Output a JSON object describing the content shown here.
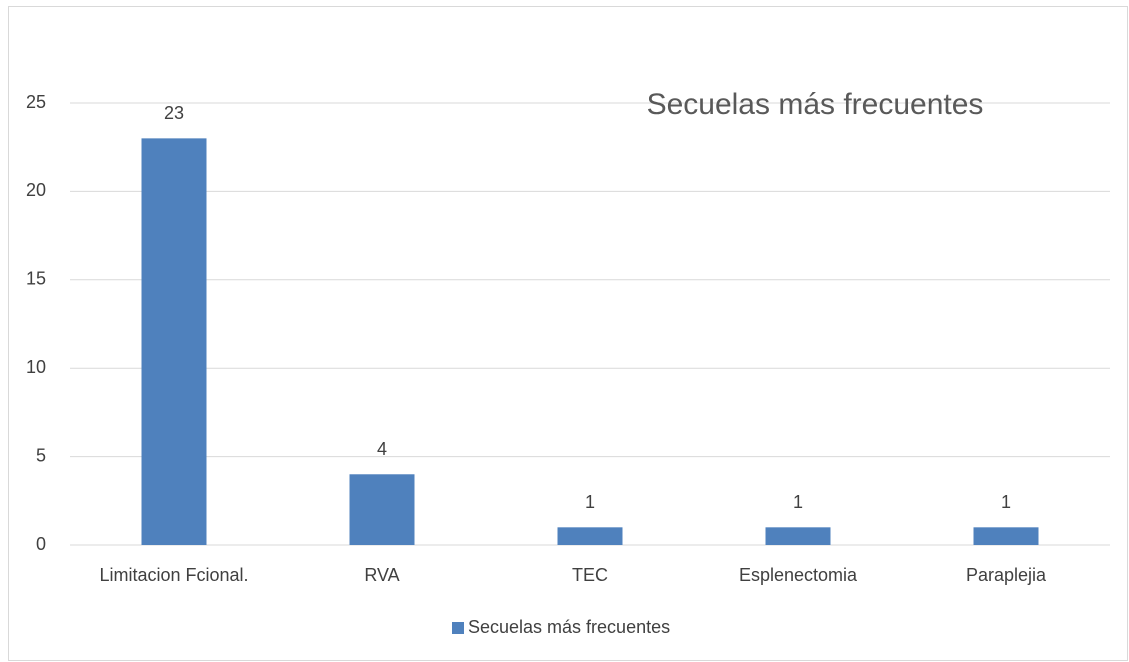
{
  "chart_data": {
    "type": "bar",
    "title": "Secuelas más frecuentes",
    "categories": [
      "Limitacion Fcional.",
      "RVA",
      "TEC",
      "Esplenectomia",
      "Paraplejia"
    ],
    "series": [
      {
        "name": "Secuelas más frecuentes",
        "color": "#4f81bd",
        "values": [
          23,
          4,
          1,
          1,
          1
        ]
      }
    ],
    "ylim": [
      0,
      25
    ],
    "yticks": [
      0,
      5,
      10,
      15,
      20,
      25
    ],
    "grid": true,
    "legend": "bottom"
  }
}
